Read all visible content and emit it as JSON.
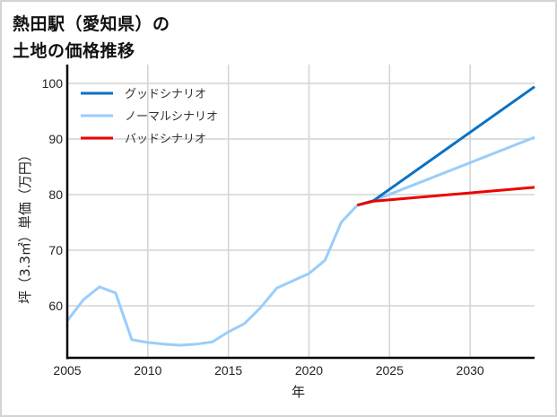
{
  "header": {
    "title_line1": "熱田駅（愛知県）の",
    "title_line2": "土地の価格推移"
  },
  "colors": {
    "good": "#0a72c4",
    "normal": "#99cdfb",
    "bad": "#ee0000",
    "grid": "#d3d3d3",
    "axis": "#000000"
  },
  "chart_data": {
    "type": "line",
    "title": "熱田駅（愛知県）の土地の価格推移",
    "xlabel": "年",
    "ylabel": "坪（3.3㎡）単価（万円）",
    "xlim": [
      2005,
      2034
    ],
    "ylim": [
      50.5,
      101.5
    ],
    "xticks": [
      2005,
      2010,
      2015,
      2020,
      2025,
      2030
    ],
    "yticks": [
      60,
      70,
      80,
      90,
      100
    ],
    "grid": true,
    "legend_position": "upper left",
    "series": [
      {
        "name": "グッドシナリオ",
        "key": "good",
        "x": [
          2023,
          2024,
          2034
        ],
        "y": [
          78.1,
          78.9,
          99.4
        ]
      },
      {
        "name": "ノーマルシナリオ",
        "key": "normal",
        "x": [
          2005,
          2006,
          2007,
          2008,
          2009,
          2010,
          2011,
          2012,
          2013,
          2014,
          2015,
          2016,
          2017,
          2018,
          2019,
          2020,
          2021,
          2022,
          2023,
          2024,
          2034
        ],
        "y": [
          57.3,
          61.1,
          63.4,
          62.3,
          53.9,
          53.4,
          53.1,
          52.9,
          53.1,
          53.5,
          55.3,
          56.8,
          59.7,
          63.2,
          64.5,
          65.8,
          68.2,
          75.0,
          78.1,
          78.9,
          90.3
        ]
      },
      {
        "name": "バッドシナリオ",
        "key": "bad",
        "x": [
          2023,
          2024,
          2034
        ],
        "y": [
          78.1,
          78.8,
          81.3
        ]
      }
    ]
  }
}
